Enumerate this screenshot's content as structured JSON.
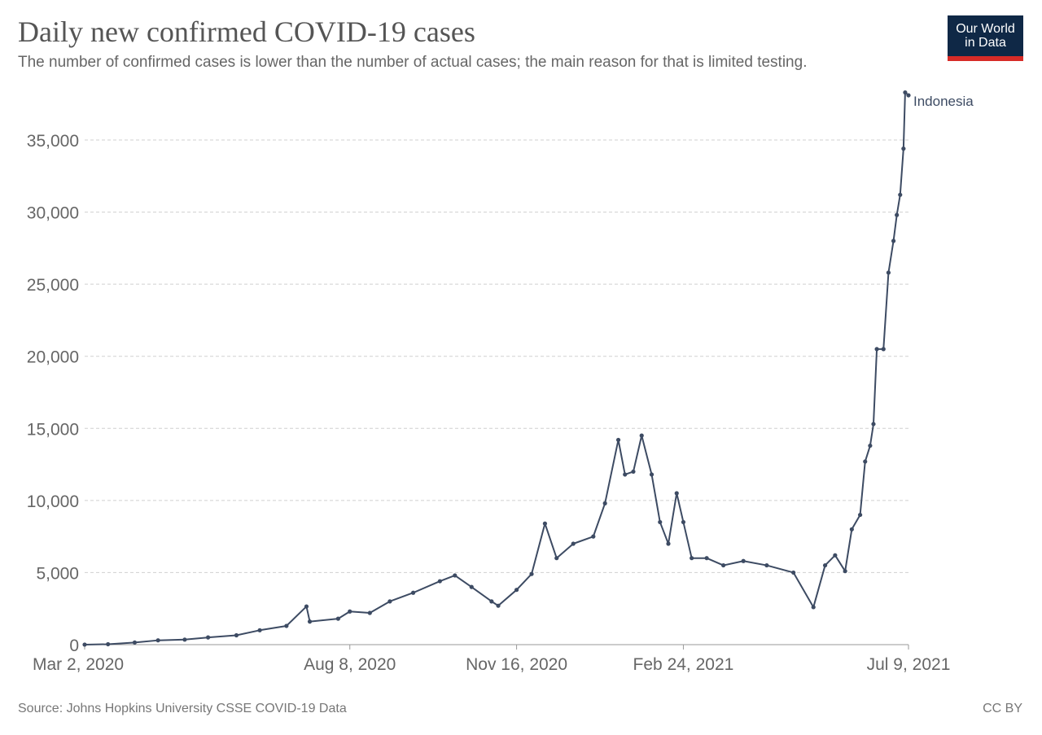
{
  "header": {
    "title": "Daily new confirmed COVID-19 cases",
    "subtitle": "The number of confirmed cases is lower than the number of actual cases; the main reason for that is limited testing."
  },
  "logo": {
    "line1": "Our World",
    "line2": "in Data"
  },
  "footer": {
    "source": "Source: Johns Hopkins University CSSE COVID-19 Data",
    "license": "CC BY"
  },
  "colors": {
    "series": "#3d4b63",
    "grid": "#d0d0d0",
    "logo_bg": "#0f2846",
    "logo_accent": "#d72b27"
  },
  "chart_data": {
    "type": "line",
    "title": "Daily new confirmed COVID-19 cases",
    "xlabel": "",
    "ylabel": "",
    "x_range": [
      "2020-03-02",
      "2021-07-09"
    ],
    "ylim": [
      0,
      38500
    ],
    "y_ticks": [
      0,
      5000,
      10000,
      15000,
      20000,
      25000,
      30000,
      35000
    ],
    "y_tick_labels": [
      "0",
      "5,000",
      "10,000",
      "15,000",
      "20,000",
      "25,000",
      "30,000",
      "35,000"
    ],
    "x_ticks": [
      "2020-03-02",
      "2020-08-08",
      "2020-11-16",
      "2021-02-24",
      "2021-07-09"
    ],
    "x_tick_labels": [
      "Mar 2, 2020",
      "Aug 8, 2020",
      "Nov 16, 2020",
      "Feb 24, 2021",
      "Jul 9, 2021"
    ],
    "grid": true,
    "series": [
      {
        "name": "Indonesia",
        "points": [
          [
            "2020-03-02",
            2
          ],
          [
            "2020-03-16",
            30
          ],
          [
            "2020-04-01",
            150
          ],
          [
            "2020-04-15",
            300
          ],
          [
            "2020-05-01",
            350
          ],
          [
            "2020-05-15",
            500
          ],
          [
            "2020-06-01",
            650
          ],
          [
            "2020-06-15",
            1000
          ],
          [
            "2020-07-01",
            1300
          ],
          [
            "2020-07-13",
            2650
          ],
          [
            "2020-07-15",
            1600
          ],
          [
            "2020-08-01",
            1800
          ],
          [
            "2020-08-08",
            2300
          ],
          [
            "2020-08-20",
            2200
          ],
          [
            "2020-09-01",
            3000
          ],
          [
            "2020-09-15",
            3600
          ],
          [
            "2020-10-01",
            4400
          ],
          [
            "2020-10-10",
            4800
          ],
          [
            "2020-10-20",
            4000
          ],
          [
            "2020-11-01",
            3000
          ],
          [
            "2020-11-05",
            2700
          ],
          [
            "2020-11-16",
            3800
          ],
          [
            "2020-11-25",
            4900
          ],
          [
            "2020-12-03",
            8400
          ],
          [
            "2020-12-10",
            6000
          ],
          [
            "2020-12-20",
            7000
          ],
          [
            "2021-01-01",
            7500
          ],
          [
            "2021-01-08",
            9800
          ],
          [
            "2021-01-16",
            14200
          ],
          [
            "2021-01-20",
            11800
          ],
          [
            "2021-01-25",
            12000
          ],
          [
            "2021-01-30",
            14500
          ],
          [
            "2021-02-05",
            11800
          ],
          [
            "2021-02-10",
            8500
          ],
          [
            "2021-02-15",
            7000
          ],
          [
            "2021-02-20",
            10500
          ],
          [
            "2021-02-24",
            8500
          ],
          [
            "2021-03-01",
            6000
          ],
          [
            "2021-03-10",
            6000
          ],
          [
            "2021-03-20",
            5500
          ],
          [
            "2021-04-01",
            5800
          ],
          [
            "2021-04-15",
            5500
          ],
          [
            "2021-05-01",
            5000
          ],
          [
            "2021-05-13",
            2600
          ],
          [
            "2021-05-20",
            5500
          ],
          [
            "2021-05-26",
            6200
          ],
          [
            "2021-06-01",
            5100
          ],
          [
            "2021-06-05",
            8000
          ],
          [
            "2021-06-10",
            9000
          ],
          [
            "2021-06-13",
            12700
          ],
          [
            "2021-06-16",
            13800
          ],
          [
            "2021-06-18",
            15300
          ],
          [
            "2021-06-20",
            20500
          ],
          [
            "2021-06-24",
            20500
          ],
          [
            "2021-06-27",
            25800
          ],
          [
            "2021-06-30",
            28000
          ],
          [
            "2021-07-02",
            29800
          ],
          [
            "2021-07-04",
            31200
          ],
          [
            "2021-07-06",
            34400
          ],
          [
            "2021-07-07",
            38300
          ],
          [
            "2021-07-09",
            38100
          ]
        ]
      }
    ]
  }
}
